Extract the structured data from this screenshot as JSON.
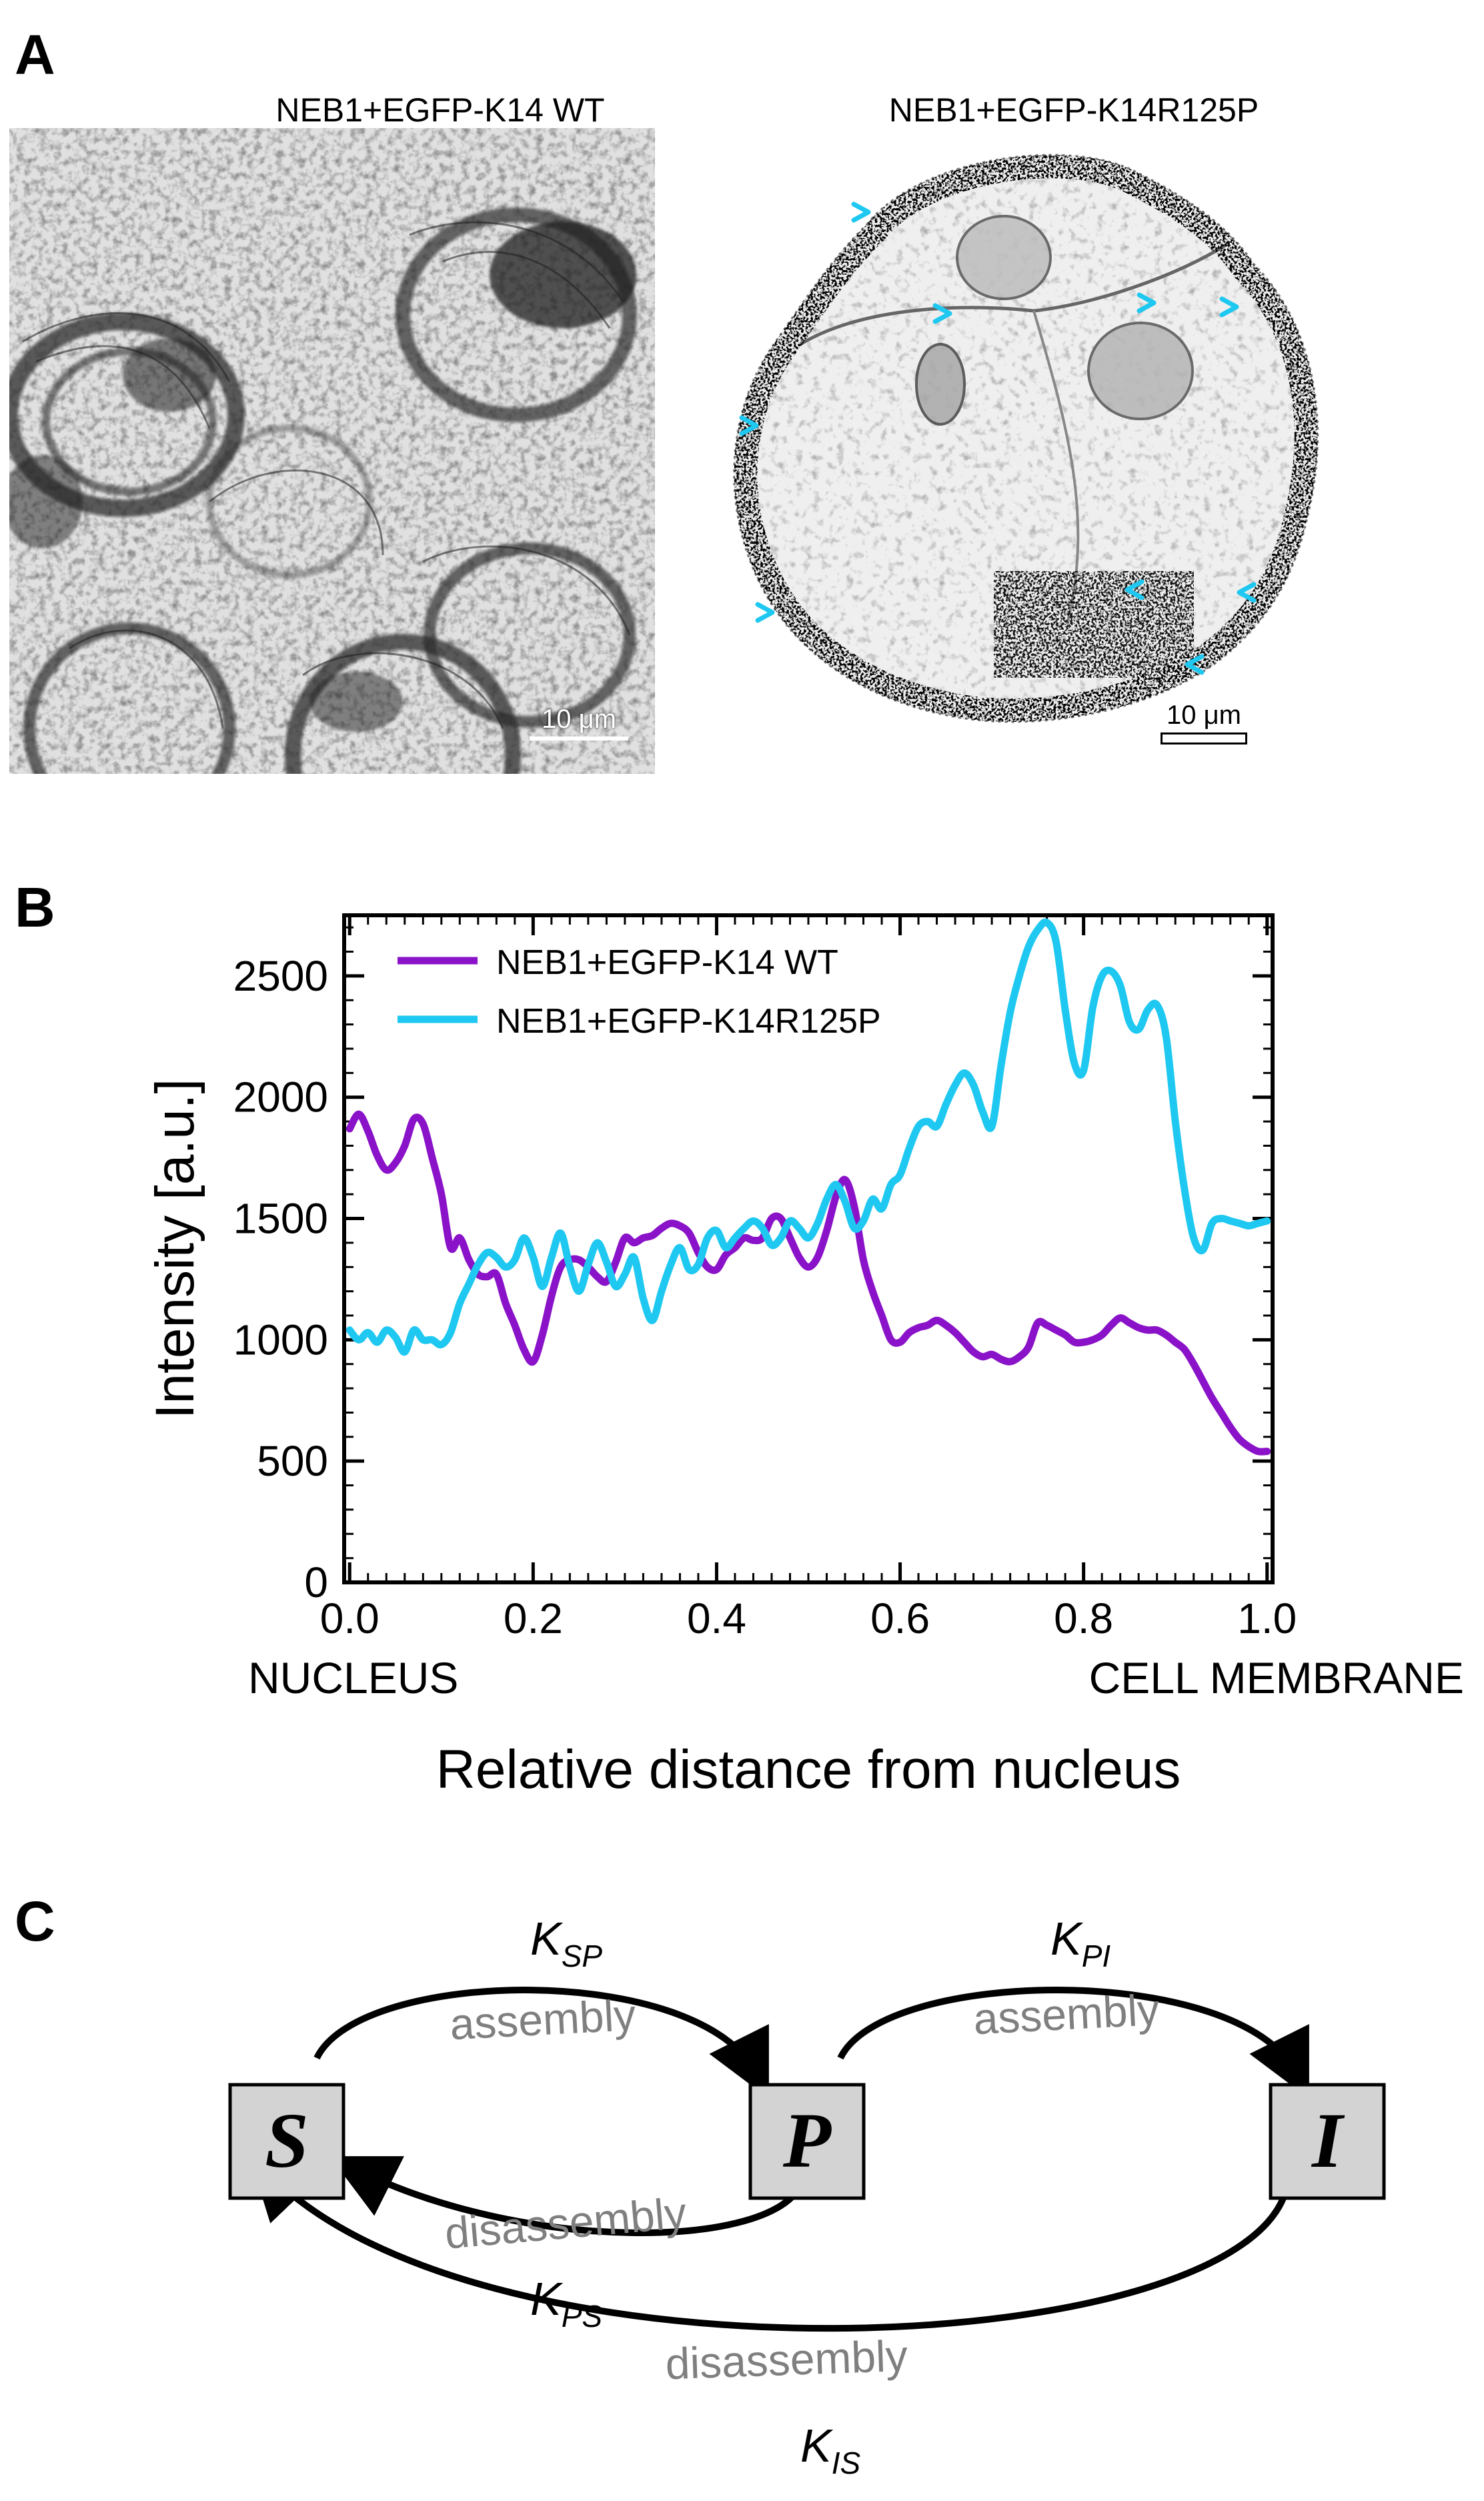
{
  "panels": {
    "a": {
      "letter": "A",
      "left_title": "NEB1+EGFP-K14 WT",
      "right_title": "NEB1+EGFP-K14R125P",
      "left_scalebar": "10 μm",
      "right_scalebar": "10 μm",
      "arrowhead_color": "#1ec8f0"
    },
    "b": {
      "letter": "B"
    },
    "c": {
      "letter": "C"
    }
  },
  "chart_data": {
    "type": "line",
    "xlabel": "Relative distance from nucleus",
    "ylabel": "Intensity [a.u.]",
    "x_end_labels": [
      "NUCLEUS",
      "CELL MEMBRANE"
    ],
    "xlim": [
      0.0,
      1.0
    ],
    "ylim": [
      0,
      2750
    ],
    "xticks": [
      "0.0",
      "0.2",
      "0.4",
      "0.6",
      "0.8",
      "1.0"
    ],
    "yticks": [
      "0",
      "500",
      "1000",
      "1500",
      "2000",
      "2500"
    ],
    "legend_position": "top-left",
    "series": [
      {
        "name": "NEB1+EGFP-K14 WT",
        "color": "#8a12c8",
        "x": [
          0.0,
          0.01,
          0.02,
          0.03,
          0.04,
          0.05,
          0.06,
          0.07,
          0.08,
          0.09,
          0.1,
          0.11,
          0.12,
          0.13,
          0.14,
          0.15,
          0.16,
          0.17,
          0.18,
          0.19,
          0.2,
          0.21,
          0.22,
          0.23,
          0.24,
          0.25,
          0.26,
          0.27,
          0.28,
          0.29,
          0.3,
          0.31,
          0.32,
          0.33,
          0.34,
          0.35,
          0.36,
          0.37,
          0.38,
          0.39,
          0.4,
          0.41,
          0.42,
          0.43,
          0.44,
          0.45,
          0.46,
          0.47,
          0.48,
          0.49,
          0.5,
          0.51,
          0.52,
          0.53,
          0.54,
          0.55,
          0.56,
          0.57,
          0.58,
          0.59,
          0.6,
          0.61,
          0.62,
          0.63,
          0.64,
          0.65,
          0.66,
          0.67,
          0.68,
          0.69,
          0.7,
          0.71,
          0.72,
          0.73,
          0.74,
          0.75,
          0.76,
          0.77,
          0.78,
          0.79,
          0.8,
          0.81,
          0.82,
          0.83,
          0.84,
          0.85,
          0.86,
          0.87,
          0.88,
          0.89,
          0.9,
          0.91,
          0.92,
          0.93,
          0.94,
          0.95,
          0.96,
          0.97,
          0.98,
          0.99,
          1.0
        ],
        "y": [
          1870,
          1930,
          1860,
          1760,
          1700,
          1730,
          1800,
          1910,
          1890,
          1750,
          1600,
          1380,
          1420,
          1330,
          1270,
          1260,
          1270,
          1150,
          1060,
          960,
          910,
          1020,
          1180,
          1300,
          1330,
          1330,
          1300,
          1260,
          1240,
          1320,
          1420,
          1400,
          1420,
          1430,
          1460,
          1480,
          1470,
          1440,
          1360,
          1300,
          1290,
          1350,
          1380,
          1420,
          1410,
          1420,
          1500,
          1500,
          1420,
          1340,
          1300,
          1340,
          1450,
          1590,
          1660,
          1550,
          1330,
          1200,
          1100,
          1000,
          990,
          1030,
          1050,
          1060,
          1080,
          1060,
          1030,
          990,
          950,
          930,
          940,
          920,
          910,
          930,
          970,
          1070,
          1060,
          1040,
          1020,
          990,
          990,
          1000,
          1020,
          1060,
          1090,
          1070,
          1050,
          1040,
          1040,
          1020,
          990,
          960,
          900,
          830,
          760,
          700,
          640,
          590,
          560,
          540,
          540
        ]
      },
      {
        "name": "NEB1+EGFP-K14R125P",
        "color": "#1ec8f0",
        "x": [
          0.0,
          0.01,
          0.02,
          0.03,
          0.04,
          0.05,
          0.06,
          0.07,
          0.08,
          0.09,
          0.1,
          0.11,
          0.12,
          0.13,
          0.14,
          0.15,
          0.16,
          0.17,
          0.18,
          0.19,
          0.2,
          0.21,
          0.22,
          0.23,
          0.24,
          0.25,
          0.26,
          0.27,
          0.28,
          0.29,
          0.3,
          0.31,
          0.32,
          0.33,
          0.34,
          0.35,
          0.36,
          0.37,
          0.38,
          0.39,
          0.4,
          0.41,
          0.42,
          0.43,
          0.44,
          0.45,
          0.46,
          0.47,
          0.48,
          0.49,
          0.5,
          0.51,
          0.52,
          0.53,
          0.54,
          0.55,
          0.56,
          0.57,
          0.58,
          0.59,
          0.6,
          0.61,
          0.62,
          0.63,
          0.64,
          0.65,
          0.66,
          0.67,
          0.68,
          0.69,
          0.7,
          0.71,
          0.72,
          0.73,
          0.74,
          0.75,
          0.76,
          0.77,
          0.78,
          0.79,
          0.8,
          0.81,
          0.82,
          0.83,
          0.84,
          0.85,
          0.86,
          0.87,
          0.88,
          0.89,
          0.9,
          0.91,
          0.92,
          0.93,
          0.94,
          0.95,
          0.96,
          0.97,
          0.98,
          0.99,
          1.0
        ],
        "y": [
          1040,
          1000,
          1030,
          990,
          1040,
          1010,
          950,
          1040,
          1000,
          1000,
          980,
          1030,
          1150,
          1230,
          1310,
          1360,
          1340,
          1300,
          1330,
          1420,
          1340,
          1220,
          1340,
          1440,
          1300,
          1200,
          1310,
          1400,
          1320,
          1220,
          1270,
          1340,
          1170,
          1080,
          1200,
          1310,
          1380,
          1290,
          1310,
          1420,
          1450,
          1380,
          1420,
          1460,
          1490,
          1460,
          1390,
          1420,
          1490,
          1460,
          1420,
          1480,
          1580,
          1640,
          1570,
          1460,
          1490,
          1580,
          1540,
          1640,
          1680,
          1790,
          1880,
          1900,
          1880,
          1970,
          2050,
          2100,
          2050,
          1940,
          1880,
          2130,
          2350,
          2500,
          2620,
          2690,
          2720,
          2640,
          2360,
          2140,
          2110,
          2370,
          2500,
          2520,
          2460,
          2310,
          2280,
          2360,
          2380,
          2250,
          1900,
          1620,
          1420,
          1370,
          1480,
          1500,
          1490,
          1480,
          1470,
          1480,
          1490
        ]
      }
    ]
  },
  "scheme": {
    "boxes": {
      "s": "S",
      "p": "P",
      "i": "I"
    },
    "rates": {
      "k_sp": {
        "base": "K",
        "sub": "SP"
      },
      "k_pi": {
        "base": "K",
        "sub": "PI"
      },
      "k_ps": {
        "base": "K",
        "sub": "PS"
      },
      "k_is": {
        "base": "K",
        "sub": "IS"
      }
    },
    "labels": {
      "assembly_sp": "assembly",
      "assembly_pi": "assembly",
      "disassembly_ps": "disassembly",
      "disassembly_is": "disassembly"
    },
    "box_fill": "#d3d3d3",
    "label_color": "#7f7f7f"
  }
}
